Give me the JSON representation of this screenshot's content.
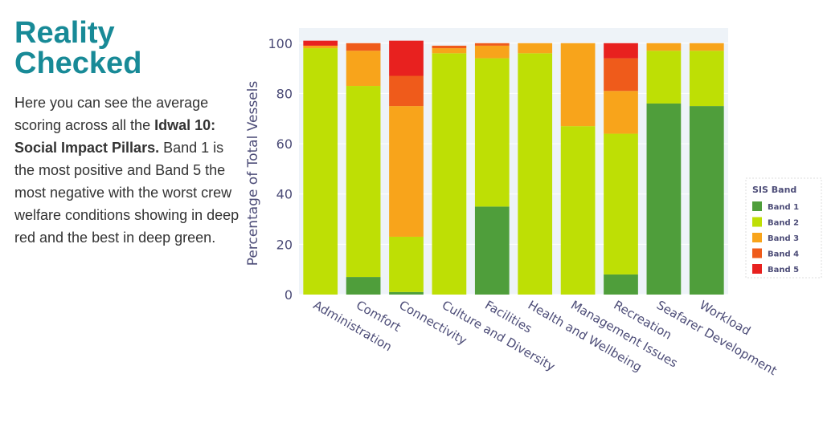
{
  "intro": {
    "title": "Reality Checked",
    "body": [
      "Here you can see the average scoring across all the ",
      "Idwal 10: Social Impact Pillars.",
      " Band 1 is the most positive and Band 5 the most negative with the worst crew welfare conditions showing in deep red and the best in deep green."
    ]
  },
  "chart_data": {
    "type": "stacked_bar",
    "y_label": "Percentage of Total Vessels",
    "categories": [
      "Administration",
      "Comfort",
      "Connectivity",
      "Culture and Diversity",
      "Facilities",
      "Health and Wellbeing",
      "Management Issues",
      "Recreation",
      "Seafarer Development",
      "Workload"
    ],
    "legend_title": "SIS Band",
    "series": [
      {
        "name": "Band 1",
        "color": "#4f9e3b",
        "values": [
          0,
          7,
          1,
          0,
          35,
          0,
          0,
          8,
          76,
          75
        ]
      },
      {
        "name": "Band 2",
        "color": "#bedf05",
        "values": [
          98,
          76,
          22,
          96,
          59,
          96,
          67,
          56,
          21,
          22
        ]
      },
      {
        "name": "Band 3",
        "color": "#f8a41b",
        "values": [
          1,
          14,
          52,
          2,
          5,
          4,
          33,
          17,
          3,
          3
        ]
      },
      {
        "name": "Band 4",
        "color": "#ef5b1b",
        "values": [
          0,
          3,
          12,
          1,
          1,
          0,
          0,
          13,
          0,
          0
        ]
      },
      {
        "name": "Band 5",
        "color": "#e8211f",
        "values": [
          2,
          0,
          14,
          0,
          0,
          0,
          0,
          6,
          0,
          0
        ]
      }
    ],
    "ylim": [
      0,
      106
    ],
    "yticks": [
      0,
      20,
      40,
      60,
      80,
      100
    ],
    "legend": "right"
  }
}
